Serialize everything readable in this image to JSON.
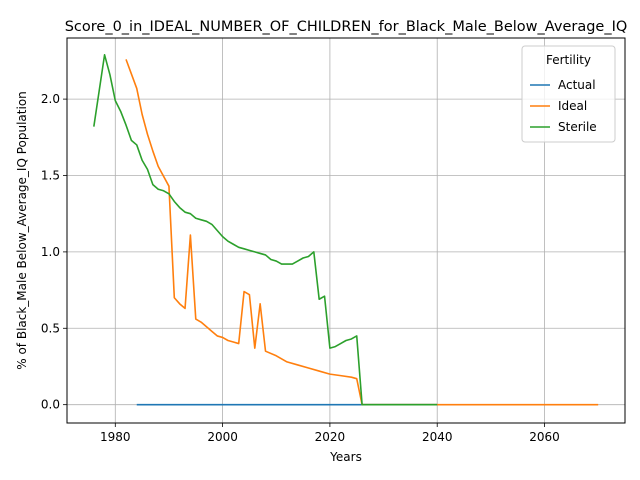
{
  "chart_data": {
    "type": "line",
    "title": "Score_0_in_IDEAL_NUMBER_OF_CHILDREN_for_Black_Male_Below_Average_IQ",
    "xlabel": "Years",
    "ylabel": "% of Black_Male Below_Average_IQ Population",
    "xlim": [
      1971,
      2075
    ],
    "ylim": [
      -0.12,
      2.4
    ],
    "xticks": [
      1980,
      2000,
      2020,
      2040,
      2060
    ],
    "yticks": [
      0.0,
      0.5,
      1.0,
      1.5,
      2.0
    ],
    "xtick_labels": [
      "1980",
      "2000",
      "2020",
      "2040",
      "2060"
    ],
    "ytick_labels": [
      "0.0",
      "0.5",
      "1.0",
      "1.5",
      "2.0"
    ],
    "grid": true,
    "legend": {
      "title": "Fertility",
      "placement": "top-right"
    },
    "series": [
      {
        "name": "Actual",
        "color": "#1f77b4",
        "x": [
          1984,
          1990,
          2000,
          2010,
          2020,
          2026,
          2030,
          2040
        ],
        "y": [
          0,
          0,
          0,
          0,
          0,
          0,
          0,
          0
        ]
      },
      {
        "name": "Ideal",
        "color": "#ff7f0e",
        "x": [
          1982,
          1984,
          1985,
          1986,
          1987,
          1988,
          1990,
          1991,
          1992,
          1993,
          1994,
          1995,
          1996,
          1997,
          1998,
          1999,
          2000,
          2001,
          2002,
          2003,
          2004,
          2005,
          2006,
          2007,
          2008,
          2010,
          2012,
          2014,
          2016,
          2018,
          2020,
          2022,
          2024,
          2025,
          2026,
          2030,
          2040,
          2050,
          2060,
          2070
        ],
        "y": [
          2.26,
          2.07,
          1.9,
          1.77,
          1.66,
          1.56,
          1.43,
          0.7,
          0.66,
          0.63,
          1.11,
          0.56,
          0.54,
          0.51,
          0.48,
          0.45,
          0.44,
          0.42,
          0.41,
          0.4,
          0.74,
          0.72,
          0.37,
          0.66,
          0.35,
          0.32,
          0.28,
          0.26,
          0.24,
          0.22,
          0.2,
          0.19,
          0.18,
          0.17,
          0.0,
          0.0,
          0.0,
          0.0,
          0.0,
          0.0
        ]
      },
      {
        "name": "Sterile",
        "color": "#2ca02c",
        "x": [
          1976,
          1978,
          1979,
          1980,
          1981,
          1982,
          1983,
          1984,
          1985,
          1986,
          1987,
          1988,
          1989,
          1990,
          1991,
          1992,
          1993,
          1994,
          1995,
          1996,
          1997,
          1998,
          1999,
          2000,
          2001,
          2002,
          2003,
          2004,
          2005,
          2006,
          2007,
          2008,
          2009,
          2010,
          2011,
          2012,
          2013,
          2014,
          2015,
          2016,
          2017,
          2018,
          2019,
          2020,
          2021,
          2022,
          2023,
          2024,
          2025,
          2026,
          2030,
          2040
        ],
        "y": [
          1.82,
          2.29,
          2.16,
          1.99,
          1.92,
          1.83,
          1.73,
          1.7,
          1.6,
          1.54,
          1.44,
          1.41,
          1.4,
          1.38,
          1.33,
          1.29,
          1.26,
          1.25,
          1.22,
          1.21,
          1.2,
          1.18,
          1.14,
          1.1,
          1.07,
          1.05,
          1.03,
          1.02,
          1.01,
          1.0,
          0.99,
          0.98,
          0.95,
          0.94,
          0.92,
          0.92,
          0.92,
          0.94,
          0.96,
          0.97,
          1.0,
          0.69,
          0.71,
          0.37,
          0.38,
          0.4,
          0.42,
          0.43,
          0.45,
          0.0,
          0.0,
          0.0
        ]
      }
    ]
  }
}
